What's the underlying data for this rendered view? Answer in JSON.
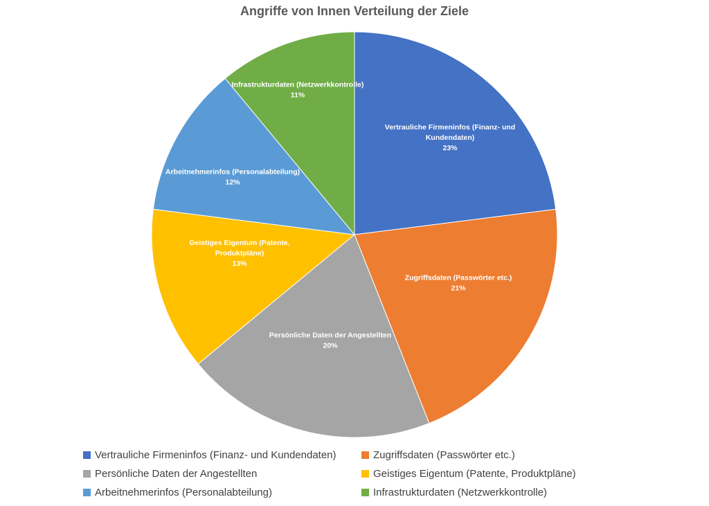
{
  "chart_data": {
    "type": "pie",
    "title": "Angriffe von Innen Verteilung der Ziele",
    "slices": [
      {
        "label": "Vertrauliche Firmeninfos (Finanz- und Kundendaten)",
        "value": 23,
        "display": "23%",
        "color": "#4472c4",
        "chart_label_lines": [
          "Vertrauliche Firmeninfos (Finanz- und",
          "Kundendaten)"
        ]
      },
      {
        "label": "Zugriffsdaten (Passwörter etc.)",
        "value": 21,
        "display": "21%",
        "color": "#ed7d31",
        "chart_label_lines": [
          "Zugriffsdaten (Passwörter etc.)"
        ]
      },
      {
        "label": "Persönliche Daten der Angestellten",
        "value": 20,
        "display": "20%",
        "color": "#a5a5a5",
        "chart_label_lines": [
          "Persönliche Daten der Angestellten"
        ]
      },
      {
        "label": "Geistiges Eigentum (Patente, Produktpläne)",
        "value": 13,
        "display": "13%",
        "color": "#ffc000",
        "chart_label_lines": [
          "Geistiges Eigentum (Patente,",
          "Produktpläne)"
        ]
      },
      {
        "label": "Arbeitnehmerinfos (Personalabteilung)",
        "value": 12,
        "display": "12%",
        "color": "#5b9bd5",
        "chart_label_lines": [
          "Arbeitnehmerinfos (Personalabteilung)"
        ]
      },
      {
        "label": "Infrastrukturdaten (Netzwerkkontrolle)",
        "value": 11,
        "display": "11%",
        "color": "#70ad47",
        "chart_label_lines": [
          "Infrastrukturdaten (Netzwerkkontrolle)"
        ]
      }
    ],
    "legend_position": "bottom"
  }
}
